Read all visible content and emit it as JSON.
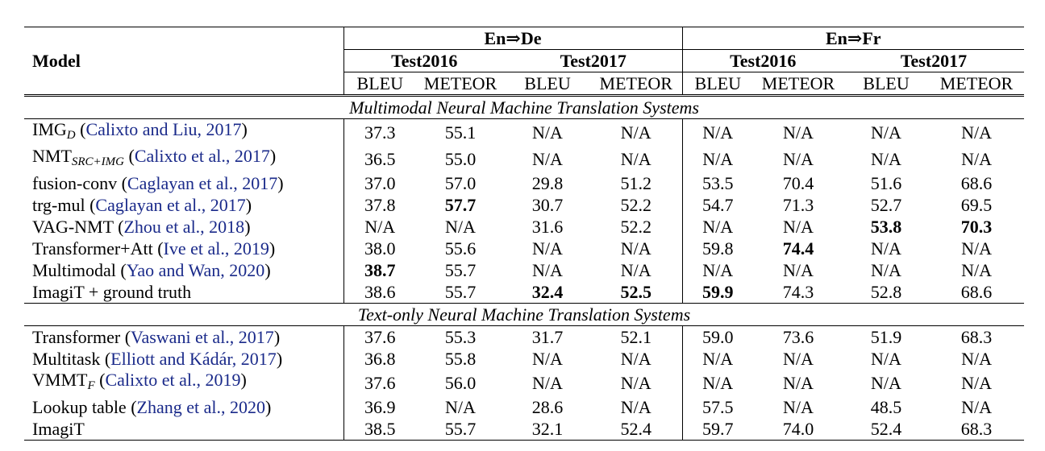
{
  "header": {
    "model_label": "Model",
    "groups": [
      "En⇒De",
      "En⇒Fr"
    ],
    "tests": [
      "Test2016",
      "Test2017",
      "Test2016",
      "Test2017"
    ],
    "metrics": [
      "BLEU",
      "METEOR",
      "BLEU",
      "METEOR",
      "BLEU",
      "METEOR",
      "BLEU",
      "METEOR"
    ]
  },
  "sections": [
    {
      "title": "Multimodal Neural Machine Translation Systems",
      "rows": [
        {
          "name": "IMG",
          "sub": "D",
          "cite": "Calixto and Liu, 2017",
          "values": [
            "37.3",
            "55.1",
            "N/A",
            "N/A",
            "N/A",
            "N/A",
            "N/A",
            "N/A"
          ],
          "bold": []
        },
        {
          "name": "NMT",
          "sub": "SRC+IMG",
          "cite": "Calixto et al., 2017",
          "values": [
            "36.5",
            "55.0",
            "N/A",
            "N/A",
            "N/A",
            "N/A",
            "N/A",
            "N/A"
          ],
          "bold": []
        },
        {
          "name": "fusion-conv",
          "sub": "",
          "cite": "Caglayan et al., 2017",
          "values": [
            "37.0",
            "57.0",
            "29.8",
            "51.2",
            "53.5",
            "70.4",
            "51.6",
            "68.6"
          ],
          "bold": []
        },
        {
          "name": "trg-mul",
          "sub": "",
          "cite": "Caglayan et al., 2017",
          "values": [
            "37.8",
            "57.7",
            "30.7",
            "52.2",
            "54.7",
            "71.3",
            "52.7",
            "69.5"
          ],
          "bold": [
            1
          ]
        },
        {
          "name": "VAG-NMT",
          "sub": "",
          "cite": "Zhou et al., 2018",
          "values": [
            "N/A",
            "N/A",
            "31.6",
            "52.2",
            "N/A",
            "N/A",
            "53.8",
            "70.3"
          ],
          "bold": [
            6,
            7
          ]
        },
        {
          "name": "Transformer+Att",
          "sub": "",
          "cite": "Ive et al., 2019",
          "values": [
            "38.0",
            "55.6",
            "N/A",
            "N/A",
            "59.8",
            "74.4",
            "N/A",
            "N/A"
          ],
          "bold": [
            5
          ]
        },
        {
          "name": "Multimodal",
          "sub": "",
          "cite": "Yao and Wan, 2020",
          "values": [
            "38.7",
            "55.7",
            "N/A",
            "N/A",
            "N/A",
            "N/A",
            "N/A",
            "N/A"
          ],
          "bold": [
            0
          ]
        },
        {
          "name": "ImagiT + ground truth",
          "sub": "",
          "cite": "",
          "values": [
            "38.6",
            "55.7",
            "32.4",
            "52.5",
            "59.9",
            "74.3",
            "52.8",
            "68.6"
          ],
          "bold": [
            2,
            3,
            4
          ]
        }
      ]
    },
    {
      "title": "Text-only Neural Machine Translation Systems",
      "rows": [
        {
          "name": "Transformer",
          "sub": "",
          "cite": "Vaswani et al., 2017",
          "values": [
            "37.6",
            "55.3",
            "31.7",
            "52.1",
            "59.0",
            "73.6",
            "51.9",
            "68.3"
          ],
          "bold": []
        },
        {
          "name": "Multitask",
          "sub": "",
          "cite": "Elliott and Kádár, 2017",
          "values": [
            "36.8",
            "55.8",
            "N/A",
            "N/A",
            "N/A",
            "N/A",
            "N/A",
            "N/A"
          ],
          "bold": []
        },
        {
          "name": "VMMT",
          "sub": "F",
          "cite": "Calixto et al., 2019",
          "values": [
            "37.6",
            "56.0",
            "N/A",
            "N/A",
            "N/A",
            "N/A",
            "N/A",
            "N/A"
          ],
          "bold": []
        },
        {
          "name": "Lookup table",
          "sub": "",
          "cite": "Zhang et al., 2020",
          "values": [
            "36.9",
            "N/A",
            "28.6",
            "N/A",
            "57.5",
            "N/A",
            "48.5",
            "N/A"
          ],
          "bold": []
        },
        {
          "name": "ImagiT",
          "sub": "",
          "cite": "",
          "values": [
            "38.5",
            "55.7",
            "32.1",
            "52.4",
            "59.7",
            "74.0",
            "52.4",
            "68.3"
          ],
          "bold": []
        }
      ]
    }
  ]
}
